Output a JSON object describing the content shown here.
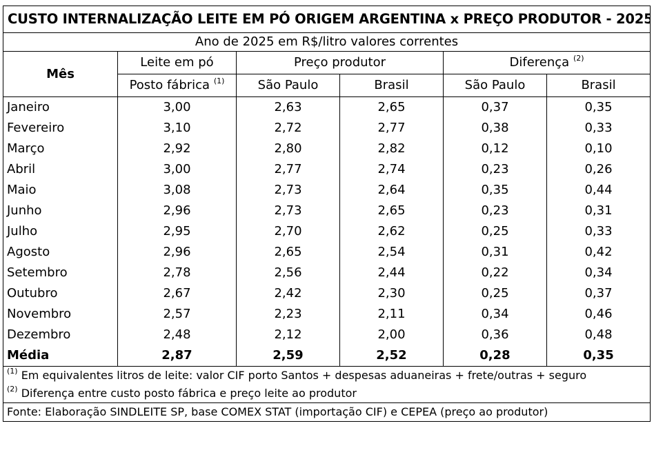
{
  "title": "CUSTO INTERNALIZAÇÃO LEITE EM PÓ ORIGEM ARGENTINA x PREÇO PRODUTOR - 2025",
  "subtitle": "Ano de 2025 em R$/litro valores correntes",
  "headers": {
    "mes": "Mês",
    "leite_top": "Leite em pó",
    "leite_bottom": "Posto fábrica",
    "leite_sup": "(1)",
    "preco": "Preço produtor",
    "diferenca": "Diferença",
    "diferenca_sup": "(2)",
    "sao_paulo": "São Paulo",
    "brasil": "Brasil",
    "sao_paulo_2": "São Paulo",
    "brasil_2": "Brasil"
  },
  "rows": [
    {
      "mes": "Janeiro",
      "leite": "3,00",
      "sp": "2,63",
      "br": "2,65",
      "dsp": "0,37",
      "dbr": "0,35"
    },
    {
      "mes": "Fevereiro",
      "leite": "3,10",
      "sp": "2,72",
      "br": "2,77",
      "dsp": "0,38",
      "dbr": "0,33"
    },
    {
      "mes": "Março",
      "leite": "2,92",
      "sp": "2,80",
      "br": "2,82",
      "dsp": "0,12",
      "dbr": "0,10"
    },
    {
      "mes": "Abril",
      "leite": "3,00",
      "sp": "2,77",
      "br": "2,74",
      "dsp": "0,23",
      "dbr": "0,26"
    },
    {
      "mes": "Maio",
      "leite": "3,08",
      "sp": "2,73",
      "br": "2,64",
      "dsp": "0,35",
      "dbr": "0,44"
    },
    {
      "mes": "Junho",
      "leite": "2,96",
      "sp": "2,73",
      "br": "2,65",
      "dsp": "0,23",
      "dbr": "0,31"
    },
    {
      "mes": "Julho",
      "leite": "2,95",
      "sp": "2,70",
      "br": "2,62",
      "dsp": "0,25",
      "dbr": "0,33"
    },
    {
      "mes": "Agosto",
      "leite": "2,96",
      "sp": "2,65",
      "br": "2,54",
      "dsp": "0,31",
      "dbr": "0,42"
    },
    {
      "mes": "Setembro",
      "leite": "2,78",
      "sp": "2,56",
      "br": "2,44",
      "dsp": "0,22",
      "dbr": "0,34"
    },
    {
      "mes": "Outubro",
      "leite": "2,67",
      "sp": "2,42",
      "br": "2,30",
      "dsp": "0,25",
      "dbr": "0,37"
    },
    {
      "mes": "Novembro",
      "leite": "2,57",
      "sp": "2,23",
      "br": "2,11",
      "dsp": "0,34",
      "dbr": "0,46"
    },
    {
      "mes": "Dezembro",
      "leite": "2,48",
      "sp": "2,12",
      "br": "2,00",
      "dsp": "0,36",
      "dbr": "0,48"
    }
  ],
  "average": {
    "mes": "Média",
    "leite": "2,87",
    "sp": "2,59",
    "br": "2,52",
    "dsp": "0,28",
    "dbr": "0,35"
  },
  "notes": {
    "note1_sup": "(1)",
    "note1": "Em equivalentes litros de leite: valor CIF porto Santos + despesas aduaneiras + frete/outras + seguro",
    "note2_sup": "(2)",
    "note2": "Diferença entre custo posto fábrica e preço leite ao produtor",
    "source": "Fonte: Elaboração SINDLEITE SP, base COMEX STAT (importação CIF) e CEPEA (preço ao produtor)"
  }
}
